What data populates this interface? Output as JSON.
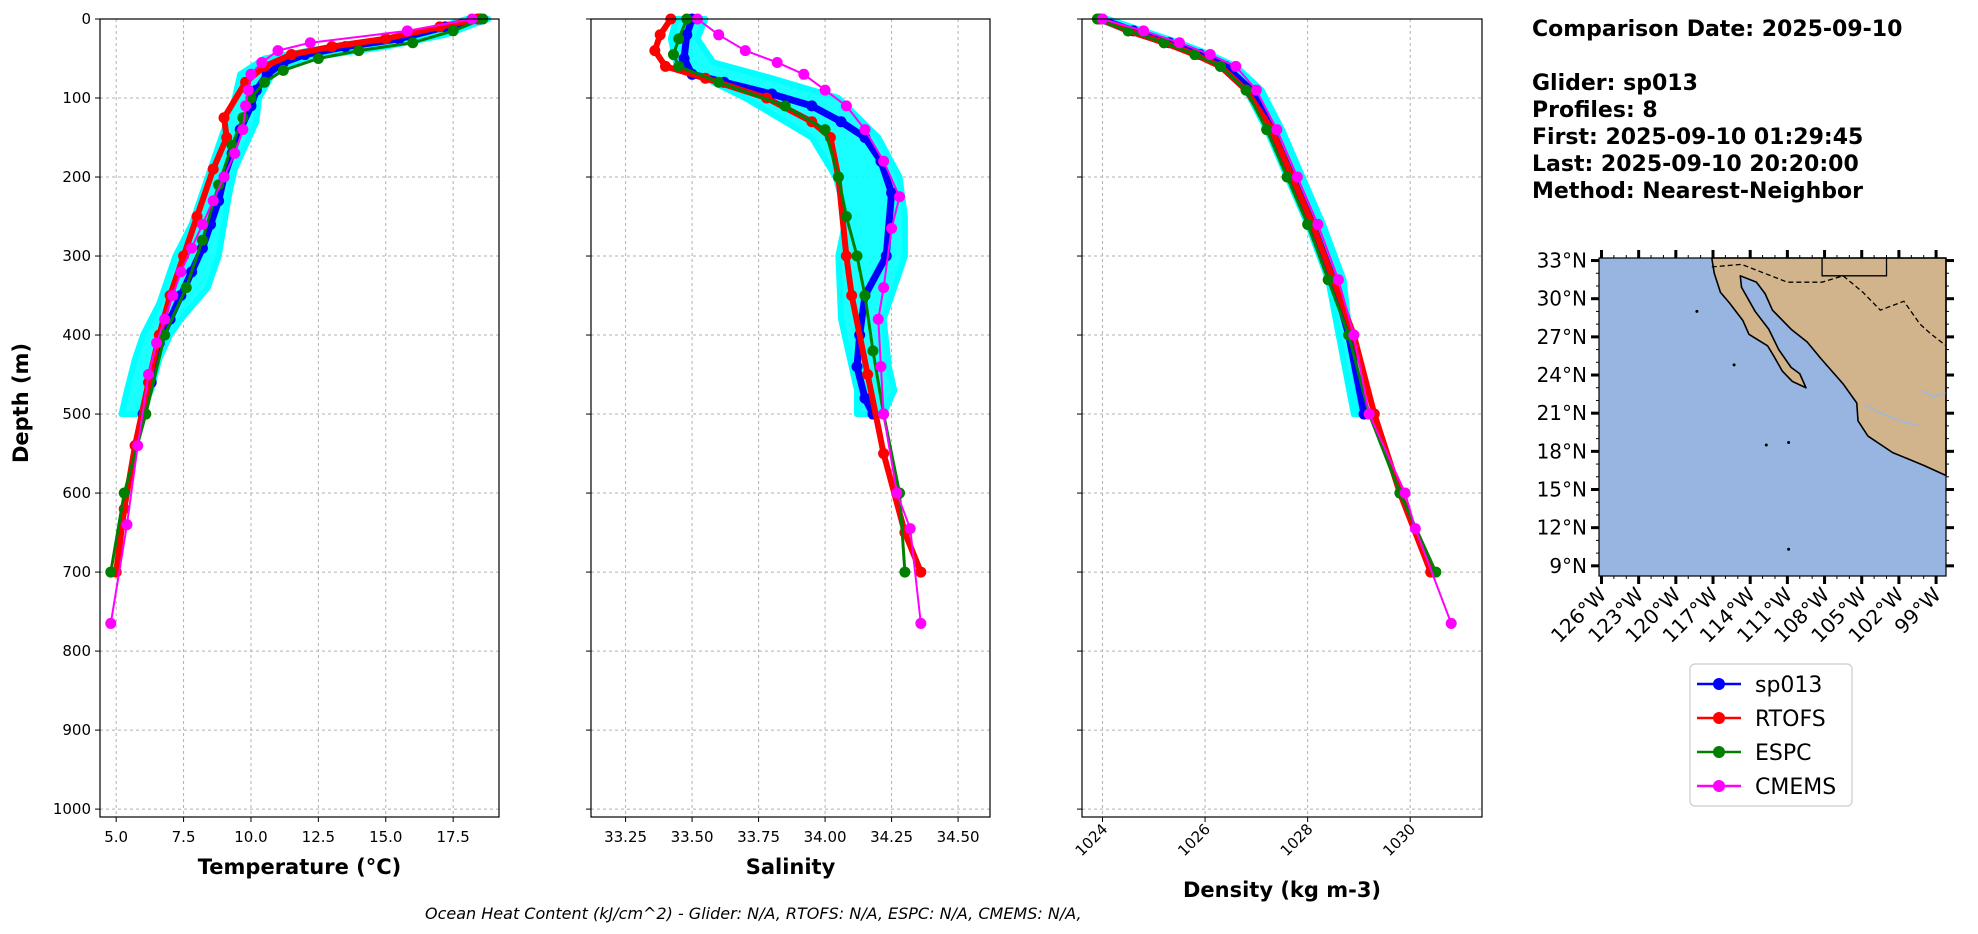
{
  "info": {
    "lines": [
      "Comparison Date: 2025-09-10",
      "",
      "Glider: sp013",
      "Profiles: 8",
      "First: 2025-09-10 01:29:45",
      "Last: 2025-09-10 20:20:00",
      "Method: Nearest-Neighbor"
    ]
  },
  "footer": "Ocean Heat Content (kJ/cm^2) - Glider: N/A,  RTOFS: N/A,  ESPC: N/A,  CMEMS: N/A,",
  "colors": {
    "sp013": "#0000ff",
    "RTOFS": "#ff0000",
    "ESPC": "#008000",
    "CMEMS": "#ff00ff",
    "glider_profiles": "#00ffff",
    "ocean": "#98b5e2",
    "land": "#d2b48c"
  },
  "legend": [
    "sp013",
    "RTOFS",
    "ESPC",
    "CMEMS"
  ],
  "map": {
    "lat_labels": [
      "33°N",
      "30°N",
      "27°N",
      "24°N",
      "21°N",
      "18°N",
      "15°N",
      "12°N",
      "9°N"
    ],
    "lat_values": [
      33,
      30,
      27,
      24,
      21,
      18,
      15,
      12,
      9
    ],
    "lon_labels": [
      "126°W",
      "123°W",
      "120°W",
      "117°W",
      "114°W",
      "111°W",
      "108°W",
      "105°W",
      "102°W",
      "99°W"
    ],
    "lon_values": [
      -126,
      -123,
      -120,
      -117,
      -114,
      -111,
      -108,
      -105,
      -102,
      -99
    ],
    "extent": {
      "lon": [
        -126.2,
        -98.2
      ],
      "lat": [
        8.2,
        33.2
      ]
    }
  },
  "chart_data": [
    {
      "type": "line",
      "xlabel": "Temperature (°C)",
      "ylabel": "Depth (m)",
      "xlim": [
        4.4,
        19.2
      ],
      "ylim": [
        1010,
        0
      ],
      "xticks": [
        5.0,
        7.5,
        10.0,
        12.5,
        15.0,
        17.5
      ],
      "xtick_labels": [
        "5.0",
        "7.5",
        "10.0",
        "12.5",
        "15.0",
        "17.5"
      ],
      "yticks": [
        0,
        100,
        200,
        300,
        400,
        500,
        600,
        700,
        800,
        900,
        1000
      ],
      "grid": true,
      "series": [
        {
          "name": "sp013",
          "x": [
            18.5,
            17.2,
            15.5,
            13.5,
            12.0,
            11.2,
            10.6,
            10.2,
            10.0,
            9.6,
            9.3,
            9.0,
            8.8,
            8.5,
            8.2,
            7.8,
            7.4,
            7.0,
            6.6,
            6.3,
            6.0
          ],
          "y": [
            0,
            10,
            25,
            35,
            45,
            55,
            70,
            90,
            110,
            140,
            170,
            200,
            230,
            260,
            290,
            320,
            350,
            380,
            410,
            460,
            500
          ]
        },
        {
          "name": "RTOFS",
          "x": [
            18.4,
            17.0,
            15.0,
            13.0,
            11.5,
            10.5,
            9.8,
            9.0,
            9.1,
            8.6,
            8.0,
            7.5,
            7.0,
            6.6,
            6.2,
            5.7,
            5.3,
            5.0
          ],
          "y": [
            0,
            10,
            25,
            35,
            45,
            60,
            80,
            125,
            150,
            190,
            250,
            300,
            350,
            400,
            460,
            540,
            620,
            700
          ]
        },
        {
          "name": "ESPC",
          "x": [
            18.6,
            17.5,
            16.0,
            14.0,
            12.5,
            11.2,
            10.5,
            10.0,
            9.7,
            9.3,
            8.8,
            8.2,
            7.6,
            6.8,
            6.1,
            5.3,
            4.8
          ],
          "y": [
            0,
            15,
            30,
            40,
            50,
            65,
            80,
            100,
            125,
            160,
            210,
            280,
            340,
            400,
            500,
            600,
            700
          ]
        },
        {
          "name": "CMEMS",
          "x": [
            18.2,
            15.8,
            12.2,
            11.0,
            10.4,
            10.0,
            9.9,
            9.8,
            9.7,
            9.4,
            9.0,
            8.6,
            8.2,
            7.8,
            7.4,
            7.1,
            6.8,
            6.5,
            6.2,
            5.8,
            5.4,
            4.8
          ],
          "y": [
            0,
            15,
            30,
            40,
            55,
            70,
            90,
            110,
            140,
            170,
            200,
            230,
            260,
            290,
            320,
            350,
            380,
            410,
            450,
            540,
            640,
            765
          ]
        },
        {
          "name": "glider profiles",
          "role": "spread",
          "x": [
            18.8,
            17.2,
            15.0,
            12.0,
            10.8,
            10.3,
            10.2,
            9.8,
            9.4,
            9.2,
            9.0,
            8.8,
            8.4,
            7.9,
            7.4,
            7.0,
            6.6,
            6.3,
            5.8
          ],
          "x2": [
            18.0,
            16.0,
            13.0,
            10.5,
            9.6,
            9.4,
            9.1,
            8.8,
            8.5,
            8.2,
            7.8,
            7.2,
            6.8,
            6.6,
            6.3,
            6.0,
            5.7,
            5.4,
            5.2
          ],
          "y": [
            0,
            20,
            35,
            50,
            70,
            100,
            130,
            160,
            190,
            220,
            260,
            300,
            340,
            360,
            380,
            400,
            430,
            470,
            500
          ]
        }
      ]
    },
    {
      "type": "line",
      "xlabel": "Salinity",
      "xlim": [
        33.12,
        34.62
      ],
      "ylim": [
        1010,
        0
      ],
      "xticks": [
        33.25,
        33.5,
        33.75,
        34.0,
        34.25,
        34.5
      ],
      "xtick_labels": [
        "33.25",
        "33.50",
        "33.75",
        "34.00",
        "34.25",
        "34.50"
      ],
      "yticks": [
        0,
        100,
        200,
        300,
        400,
        500,
        600,
        700,
        800,
        900,
        1000
      ],
      "grid": true,
      "series": [
        {
          "name": "sp013",
          "x": [
            33.5,
            33.48,
            33.47,
            33.5,
            33.62,
            33.8,
            33.95,
            34.06,
            34.15,
            34.21,
            34.25,
            34.23,
            34.15,
            34.13,
            34.12,
            34.15,
            34.18
          ],
          "y": [
            0,
            20,
            50,
            70,
            80,
            95,
            110,
            130,
            150,
            180,
            220,
            300,
            350,
            400,
            440,
            480,
            500
          ]
        },
        {
          "name": "RTOFS",
          "x": [
            33.42,
            33.38,
            33.36,
            33.4,
            33.55,
            33.78,
            33.95,
            34.02,
            34.05,
            34.08,
            34.1,
            34.16,
            34.22,
            34.3,
            34.36
          ],
          "y": [
            0,
            20,
            40,
            60,
            75,
            100,
            130,
            150,
            200,
            300,
            350,
            450,
            550,
            650,
            700
          ]
        },
        {
          "name": "ESPC",
          "x": [
            33.48,
            33.45,
            33.43,
            33.45,
            33.6,
            33.85,
            34.0,
            34.05,
            34.08,
            34.12,
            34.15,
            34.18,
            34.22,
            34.28,
            34.3
          ],
          "y": [
            0,
            25,
            45,
            60,
            80,
            110,
            140,
            200,
            250,
            300,
            350,
            420,
            500,
            600,
            700
          ]
        },
        {
          "name": "CMEMS",
          "x": [
            33.52,
            33.6,
            33.7,
            33.82,
            33.92,
            34.0,
            34.08,
            34.15,
            34.22,
            34.28,
            34.25,
            34.22,
            34.2,
            34.21,
            34.22,
            34.27,
            34.32,
            34.36
          ],
          "y": [
            0,
            20,
            40,
            55,
            70,
            90,
            110,
            140,
            180,
            225,
            265,
            340,
            380,
            440,
            500,
            600,
            645,
            765
          ]
        },
        {
          "name": "glider profiles",
          "role": "spread",
          "x": [
            33.55,
            33.52,
            33.58,
            33.8,
            34.05,
            34.2,
            34.28,
            34.3,
            34.3,
            34.22,
            34.24,
            34.26,
            34.22
          ],
          "x2": [
            33.44,
            33.42,
            33.44,
            33.55,
            33.7,
            33.95,
            34.04,
            34.08,
            34.05,
            34.06,
            34.1,
            34.12,
            34.12
          ],
          "y": [
            0,
            25,
            55,
            75,
            100,
            150,
            200,
            250,
            300,
            380,
            440,
            470,
            500
          ]
        }
      ]
    },
    {
      "type": "line",
      "xlabel": "Density (kg m-3)",
      "xlim": [
        1023.6,
        1031.4
      ],
      "ylim": [
        1010,
        0
      ],
      "xticks": [
        1024,
        1026,
        1028,
        1030
      ],
      "xtick_labels": [
        "1024",
        "1026",
        "1028",
        "1030"
      ],
      "yticks": [
        0,
        100,
        200,
        300,
        400,
        500,
        600,
        700,
        800,
        900,
        1000
      ],
      "grid": true,
      "series": [
        {
          "name": "sp013",
          "x": [
            1023.95,
            1024.6,
            1025.3,
            1025.9,
            1026.4,
            1026.9,
            1027.3,
            1027.7,
            1028.1,
            1028.5,
            1028.8,
            1029.1
          ],
          "y": [
            0,
            15,
            30,
            45,
            60,
            90,
            140,
            200,
            260,
            330,
            400,
            500
          ]
        },
        {
          "name": "RTOFS",
          "x": [
            1023.95,
            1024.5,
            1025.2,
            1025.8,
            1026.3,
            1026.8,
            1027.3,
            1027.7,
            1028.1,
            1028.5,
            1028.9,
            1029.3,
            1029.8,
            1030.4
          ],
          "y": [
            0,
            15,
            30,
            45,
            60,
            90,
            140,
            200,
            260,
            330,
            400,
            500,
            600,
            700
          ]
        },
        {
          "name": "ESPC",
          "x": [
            1023.9,
            1024.5,
            1025.2,
            1025.8,
            1026.3,
            1026.8,
            1027.2,
            1027.6,
            1028.0,
            1028.4,
            1028.8,
            1029.2,
            1029.8,
            1030.5
          ],
          "y": [
            0,
            15,
            30,
            45,
            60,
            90,
            140,
            200,
            260,
            330,
            400,
            500,
            600,
            700
          ]
        },
        {
          "name": "CMEMS",
          "x": [
            1024.0,
            1024.8,
            1025.5,
            1026.1,
            1026.6,
            1027.0,
            1027.4,
            1027.8,
            1028.2,
            1028.6,
            1028.9,
            1029.2,
            1029.9,
            1030.1,
            1030.8
          ],
          "y": [
            0,
            15,
            30,
            45,
            60,
            90,
            140,
            200,
            260,
            330,
            400,
            500,
            600,
            645,
            765
          ]
        },
        {
          "name": "glider profiles",
          "role": "spread",
          "x": [
            1024.1,
            1024.8,
            1025.5,
            1026.1,
            1026.6,
            1027.1,
            1027.5,
            1027.9,
            1028.3,
            1028.7,
            1029.0
          ],
          "x2": [
            1023.9,
            1024.5,
            1025.2,
            1025.8,
            1026.3,
            1026.8,
            1027.2,
            1027.6,
            1028.0,
            1028.4,
            1028.9
          ],
          "y": [
            0,
            15,
            30,
            45,
            60,
            90,
            140,
            200,
            260,
            330,
            500
          ]
        }
      ]
    }
  ]
}
